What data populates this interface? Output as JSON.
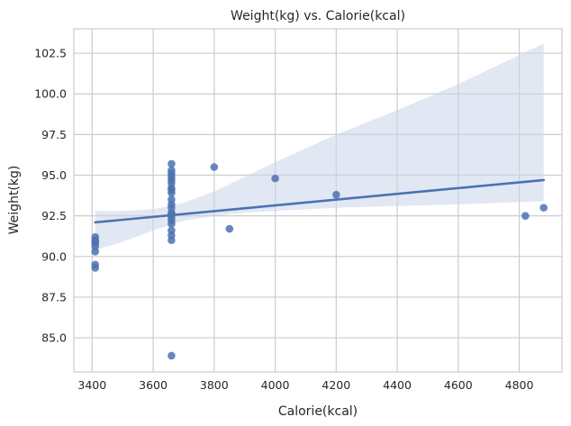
{
  "chart_data": {
    "type": "scatter",
    "title": "Weight(kg) vs. Calorie(kcal)",
    "xlabel": "Calorie(kcal)",
    "ylabel": "Weight(kg)",
    "xlim": [
      3340,
      4940
    ],
    "ylim": [
      82.9,
      104.0
    ],
    "xticks": [
      3400,
      3600,
      3800,
      4000,
      4200,
      4400,
      4600,
      4800
    ],
    "yticks": [
      85.0,
      87.5,
      90.0,
      92.5,
      95.0,
      97.5,
      100.0,
      102.5
    ],
    "xtick_labels": [
      "3400",
      "3600",
      "3800",
      "4000",
      "4200",
      "4400",
      "4600",
      "4800"
    ],
    "ytick_labels": [
      "85.0",
      "87.5",
      "90.0",
      "92.5",
      "95.0",
      "97.5",
      "100.0",
      "102.5"
    ],
    "grid": true,
    "colors": {
      "points": "#4c72b0",
      "line": "#4c72b0",
      "band": "#c9d5ea"
    },
    "points": {
      "x": [
        3410,
        3410,
        3410,
        3410,
        3410,
        3410,
        3410,
        3410,
        3660,
        3660,
        3660,
        3660,
        3660,
        3660,
        3660,
        3660,
        3660,
        3660,
        3660,
        3660,
        3660,
        3660,
        3660,
        3660,
        3660,
        3660,
        3660,
        3660,
        3660,
        3800,
        3850,
        4000,
        4200,
        4820,
        4880
      ],
      "y": [
        91.2,
        91.0,
        90.8,
        90.6,
        90.3,
        89.5,
        89.3,
        90.9,
        95.7,
        95.3,
        95.1,
        94.9,
        94.7,
        94.5,
        94.1,
        93.9,
        93.5,
        93.2,
        93.0,
        92.7,
        92.4,
        92.2,
        92.0,
        91.6,
        91.3,
        91.0,
        83.9,
        92.6,
        94.2,
        95.5,
        91.7,
        94.8,
        93.8,
        92.5,
        93.0
      ]
    },
    "regression": {
      "x": [
        3410,
        4880
      ],
      "y": [
        92.1,
        94.7
      ]
    },
    "confidence_band": {
      "x": [
        3410,
        3500,
        3600,
        3700,
        3800,
        3900,
        4000,
        4200,
        4400,
        4600,
        4880
      ],
      "upper": [
        92.8,
        92.8,
        92.9,
        93.3,
        94.0,
        94.9,
        95.8,
        97.5,
        99.0,
        100.6,
        103.1
      ],
      "lower": [
        90.4,
        90.9,
        91.6,
        92.2,
        92.5,
        92.7,
        92.8,
        93.0,
        93.1,
        93.2,
        93.4
      ]
    }
  }
}
